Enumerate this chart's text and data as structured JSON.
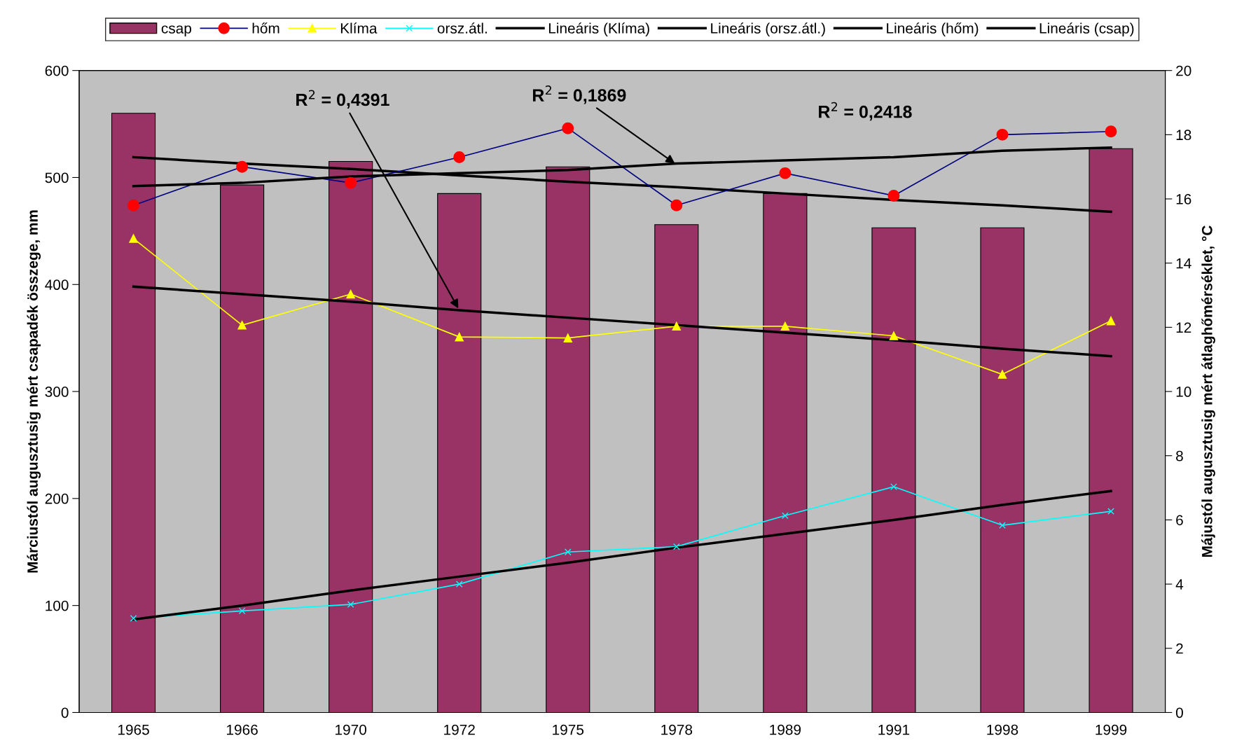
{
  "chart_data": {
    "type": "bar",
    "categories": [
      "1965",
      "1966",
      "1970",
      "1972",
      "1975",
      "1978",
      "1989",
      "1991",
      "1998",
      "1999"
    ],
    "ylabel": "Márciustól augusztusig mért csapadék összege, mm",
    "y2label": "Májustól augusztusig mért átlaghőmérséklet, °C",
    "ylim": [
      0,
      600
    ],
    "yticks": [
      0,
      100,
      200,
      300,
      400,
      500,
      600
    ],
    "y2lim": [
      0,
      20
    ],
    "y2ticks": [
      0,
      2,
      4,
      6,
      8,
      10,
      12,
      14,
      16,
      18,
      20
    ],
    "legend": "top",
    "grid": false,
    "series": [
      {
        "name": "csap",
        "color": "#993366",
        "values": [
          560,
          493,
          515,
          485,
          510,
          456,
          485,
          453,
          453,
          527
        ]
      },
      {
        "name": "hőm",
        "type": "line",
        "axis": "y2",
        "color": "#000080",
        "colors": [
          "#ff0000",
          "#ff0000",
          "#ff0000",
          "#ff0000",
          "#ff0000",
          "#ff0000",
          "#ff0000",
          "#ff0000",
          "#ff0000",
          "#ff0000"
        ],
        "marker": "circle",
        "values": [
          15.8,
          17.0,
          16.5,
          17.3,
          18.2,
          15.8,
          16.8,
          16.1,
          18.0,
          18.1
        ]
      },
      {
        "name": "Klíma",
        "type": "line",
        "color": "#ffff00",
        "marker": "triangle",
        "values": [
          443,
          362,
          391,
          351,
          350,
          361,
          361,
          352,
          316,
          366
        ]
      },
      {
        "name": "orsz.átl.",
        "type": "line",
        "color": "#00ffff",
        "marker": "cross",
        "values": [
          88,
          95,
          101,
          120,
          150,
          155,
          184,
          211,
          175,
          188
        ]
      },
      {
        "name": "Lineáris (Klíma)",
        "type": "line",
        "color": "#000000",
        "marker": "none",
        "values": [
          398,
          391,
          384,
          376,
          369,
          362,
          355,
          348,
          340,
          333
        ]
      },
      {
        "name": "Lineáris (orsz.átl.)",
        "type": "line",
        "color": "#000000",
        "marker": "none",
        "values": [
          87,
          100,
          114,
          127,
          140,
          154,
          167,
          180,
          194,
          207
        ]
      },
      {
        "name": "Lineáris (hőm)",
        "type": "line",
        "axis": "y2",
        "color": "#000000",
        "marker": "none",
        "values": [
          16.4,
          16.5,
          16.7,
          16.8,
          16.9,
          17.1,
          17.2,
          17.3,
          17.5,
          17.6
        ]
      },
      {
        "name": "Lineáris (csap)",
        "type": "line",
        "color": "#000000",
        "marker": "none",
        "values": [
          519,
          513,
          508,
          502,
          496,
          491,
          485,
          479,
          474,
          468
        ]
      }
    ],
    "annotations": [
      {
        "text": "R$^{2}$ = 0,4391",
        "x": "1972",
        "y": 376
      },
      {
        "text": "R$^{2}$ = 0,1869",
        "x": "1978",
        "y": 512
      },
      "R$^{2}$ = 0,2418"
    ]
  }
}
